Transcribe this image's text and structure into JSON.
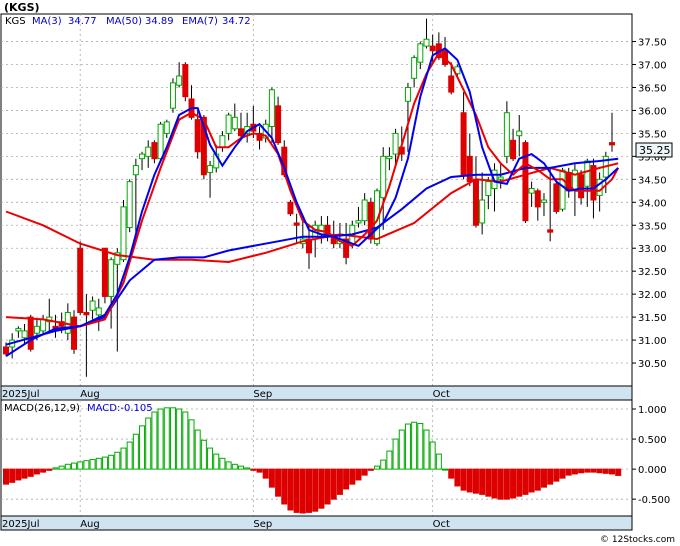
{
  "title": "(KGS)",
  "legend": {
    "symbol": "KGS",
    "ma3_label": "MA(3)",
    "ma3_value": "34.77",
    "ma50_label": "MA(50)",
    "ma50_value": "34.89",
    "ema7_label": "EMA(7)",
    "ema7_value": "34.72"
  },
  "last_price": "35.25",
  "macd_legend": {
    "label": "MACD(26,12,9)",
    "value": "MACD:-0.105"
  },
  "watermark": "© 12Stocks.com",
  "colors": {
    "up": "#00aa00",
    "down": "#dd0000",
    "ma_red": "#ee0000",
    "ma_blue": "#0000ee",
    "axis_band": "#cfe3f0",
    "price_box": "#eef6fa"
  },
  "chart_data": [
    {
      "type": "candlestick",
      "title": "(KGS)",
      "yticks": [
        "37.50",
        "37.00",
        "36.50",
        "36.00",
        "35.50",
        "35.00",
        "34.50",
        "34.00",
        "33.50",
        "33.00",
        "32.50",
        "32.00",
        "31.50",
        "31.00",
        "30.50"
      ],
      "ylim": [
        30.0,
        38.1
      ],
      "x_labels": [
        "2025Jul",
        "Aug",
        "Sep",
        "Oct"
      ],
      "x_label_index": [
        0,
        12,
        40,
        69
      ],
      "grid": true,
      "candles": [
        [
          30.85,
          30.95,
          30.65,
          30.7
        ],
        [
          30.85,
          31.15,
          30.6,
          31.0
        ],
        [
          31.2,
          31.3,
          31.05,
          31.25
        ],
        [
          31.05,
          31.35,
          30.9,
          31.2
        ],
        [
          31.5,
          31.55,
          30.75,
          30.8
        ],
        [
          31.15,
          31.45,
          31.0,
          31.3
        ],
        [
          31.2,
          31.55,
          31.1,
          31.45
        ],
        [
          31.4,
          31.9,
          31.2,
          31.5
        ],
        [
          31.3,
          31.55,
          31.05,
          31.2
        ],
        [
          31.4,
          31.6,
          31.15,
          31.3
        ],
        [
          31.15,
          31.8,
          31.0,
          31.6
        ],
        [
          31.5,
          31.65,
          30.7,
          30.8
        ],
        [
          33.0,
          33.15,
          31.55,
          31.6
        ],
        [
          31.6,
          32.0,
          30.2,
          31.55
        ],
        [
          31.65,
          31.95,
          31.45,
          31.85
        ],
        [
          31.55,
          31.9,
          31.2,
          31.7
        ],
        [
          33.0,
          33.0,
          31.8,
          31.95
        ],
        [
          31.95,
          32.8,
          31.25,
          32.75
        ],
        [
          32.65,
          33.0,
          30.75,
          32.9
        ],
        [
          32.75,
          34.05,
          32.7,
          33.9
        ],
        [
          33.45,
          34.5,
          33.35,
          34.45
        ],
        [
          34.6,
          34.95,
          33.2,
          34.8
        ],
        [
          34.95,
          35.1,
          34.7,
          35.05
        ],
        [
          35.0,
          35.35,
          34.75,
          35.2
        ],
        [
          35.3,
          35.35,
          34.85,
          34.95
        ],
        [
          34.95,
          35.75,
          34.9,
          35.7
        ],
        [
          35.5,
          35.8,
          35.4,
          35.75
        ],
        [
          36.05,
          36.7,
          35.95,
          36.6
        ],
        [
          36.55,
          37.05,
          36.5,
          36.75
        ],
        [
          37.0,
          37.05,
          36.2,
          36.3
        ],
        [
          36.25,
          36.55,
          35.8,
          35.85
        ],
        [
          35.8,
          36.0,
          34.95,
          35.1
        ],
        [
          35.85,
          35.9,
          34.5,
          34.6
        ],
        [
          34.65,
          34.9,
          34.1,
          34.8
        ],
        [
          34.75,
          35.25,
          34.65,
          35.05
        ],
        [
          35.2,
          35.55,
          35.1,
          35.45
        ],
        [
          35.5,
          35.95,
          35.35,
          35.9
        ],
        [
          35.6,
          36.15,
          35.55,
          35.85
        ],
        [
          35.6,
          35.95,
          35.35,
          35.45
        ],
        [
          35.5,
          35.95,
          35.3,
          35.65
        ],
        [
          35.7,
          36.1,
          35.4,
          35.55
        ],
        [
          35.5,
          35.65,
          35.15,
          35.35
        ],
        [
          35.4,
          35.8,
          35.3,
          35.7
        ],
        [
          35.65,
          36.5,
          35.3,
          36.45
        ],
        [
          36.1,
          36.3,
          35.25,
          35.3
        ],
        [
          35.2,
          35.35,
          34.55,
          34.6
        ],
        [
          34.0,
          34.05,
          33.7,
          33.75
        ],
        [
          33.55,
          33.75,
          33.1,
          33.5
        ],
        [
          33.1,
          33.7,
          33.0,
          33.2
        ],
        [
          33.2,
          33.5,
          32.55,
          32.9
        ],
        [
          33.2,
          33.6,
          32.8,
          33.5
        ],
        [
          33.3,
          33.7,
          33.1,
          33.5
        ],
        [
          33.5,
          33.7,
          33.15,
          33.25
        ],
        [
          33.3,
          33.6,
          33.0,
          33.1
        ],
        [
          33.1,
          33.55,
          33.0,
          33.2
        ],
        [
          33.2,
          33.55,
          32.65,
          32.8
        ],
        [
          33.1,
          33.6,
          33.0,
          33.5
        ],
        [
          33.55,
          33.9,
          33.45,
          33.6
        ],
        [
          33.6,
          34.2,
          33.5,
          34.05
        ],
        [
          34.0,
          34.1,
          33.1,
          33.2
        ],
        [
          33.1,
          34.3,
          33.05,
          34.25
        ],
        [
          34.1,
          35.2,
          33.4,
          35.0
        ],
        [
          34.95,
          35.2,
          34.7,
          35.0
        ],
        [
          35.05,
          35.6,
          34.8,
          35.5
        ],
        [
          35.2,
          35.65,
          34.9,
          35.05
        ],
        [
          36.2,
          36.6,
          35.1,
          36.5
        ],
        [
          36.7,
          37.2,
          36.5,
          37.15
        ],
        [
          37.05,
          37.5,
          36.9,
          37.45
        ],
        [
          37.4,
          38.0,
          37.35,
          37.55
        ],
        [
          37.4,
          37.65,
          37.0,
          37.3
        ],
        [
          37.45,
          37.7,
          37.1,
          37.15
        ],
        [
          37.3,
          37.6,
          36.95,
          37.0
        ],
        [
          36.75,
          37.05,
          36.35,
          36.4
        ],
        [
          36.8,
          37.0,
          36.75,
          36.95
        ],
        [
          35.95,
          36.4,
          34.5,
          34.6
        ],
        [
          35.0,
          35.5,
          34.35,
          34.45
        ],
        [
          34.5,
          35.0,
          33.45,
          33.5
        ],
        [
          33.55,
          34.65,
          33.3,
          34.05
        ],
        [
          34.15,
          34.55,
          33.85,
          34.45
        ],
        [
          34.3,
          34.85,
          33.8,
          34.7
        ],
        [
          34.5,
          34.85,
          34.3,
          34.55
        ],
        [
          35.0,
          36.2,
          34.85,
          35.95
        ],
        [
          35.35,
          35.6,
          34.9,
          34.95
        ],
        [
          35.45,
          35.9,
          35.0,
          35.55
        ],
        [
          35.3,
          35.35,
          33.55,
          33.6
        ],
        [
          34.2,
          34.45,
          33.9,
          34.3
        ],
        [
          34.25,
          34.3,
          33.6,
          33.9
        ],
        [
          34.0,
          34.2,
          33.7,
          34.05
        ],
        [
          33.4,
          34.75,
          33.15,
          33.35
        ],
        [
          34.4,
          34.45,
          33.75,
          33.8
        ],
        [
          33.85,
          34.75,
          33.8,
          34.7
        ],
        [
          34.65,
          34.75,
          34.1,
          34.25
        ],
        [
          34.25,
          34.85,
          33.7,
          34.7
        ],
        [
          34.6,
          34.7,
          33.95,
          34.1
        ],
        [
          34.35,
          34.95,
          33.9,
          34.9
        ],
        [
          34.8,
          34.95,
          33.65,
          34.05
        ],
        [
          34.15,
          34.65,
          33.8,
          34.5
        ],
        [
          34.55,
          35.1,
          34.2,
          35.0
        ],
        [
          35.3,
          35.95,
          35.1,
          35.25
        ]
      ],
      "ma_red": [
        [
          0,
          31.5
        ],
        [
          6,
          31.45
        ],
        [
          12,
          31.3
        ],
        [
          16,
          31.45
        ],
        [
          19,
          32.25
        ],
        [
          22,
          33.6
        ],
        [
          25,
          34.75
        ],
        [
          28,
          35.8
        ],
        [
          30,
          35.95
        ],
        [
          32,
          35.8
        ],
        [
          34,
          35.2
        ],
        [
          36,
          35.2
        ],
        [
          38,
          35.4
        ],
        [
          40,
          35.5
        ],
        [
          42,
          35.45
        ],
        [
          44,
          35.05
        ],
        [
          46,
          34.25
        ],
        [
          48,
          33.6
        ],
        [
          50,
          33.4
        ],
        [
          52,
          33.35
        ],
        [
          54,
          33.15
        ],
        [
          56,
          33.05
        ],
        [
          58,
          33.3
        ],
        [
          60,
          33.6
        ],
        [
          62,
          34.35
        ],
        [
          64,
          35.25
        ],
        [
          66,
          36.15
        ],
        [
          68,
          36.8
        ],
        [
          70,
          37.25
        ],
        [
          72,
          37.0
        ],
        [
          74,
          36.45
        ],
        [
          76,
          35.9
        ],
        [
          78,
          35.2
        ],
        [
          80,
          34.85
        ],
        [
          82,
          34.6
        ],
        [
          84,
          34.85
        ],
        [
          86,
          34.7
        ],
        [
          88,
          34.5
        ],
        [
          90,
          34.5
        ],
        [
          92,
          34.25
        ],
        [
          94,
          34.25
        ],
        [
          96,
          34.25
        ],
        [
          98,
          34.5
        ],
        [
          99,
          34.75
        ]
      ],
      "ma_red2": [
        [
          0,
          33.8
        ],
        [
          6,
          33.5
        ],
        [
          12,
          33.1
        ],
        [
          18,
          32.85
        ],
        [
          24,
          32.75
        ],
        [
          30,
          32.75
        ],
        [
          36,
          32.7
        ],
        [
          42,
          32.9
        ],
        [
          48,
          33.15
        ],
        [
          54,
          33.3
        ],
        [
          60,
          33.2
        ],
        [
          66,
          33.55
        ],
        [
          72,
          34.2
        ],
        [
          76,
          34.5
        ],
        [
          80,
          34.45
        ],
        [
          84,
          34.6
        ],
        [
          88,
          34.75
        ],
        [
          92,
          34.6
        ],
        [
          96,
          34.75
        ],
        [
          99,
          34.85
        ]
      ],
      "ma_blue": [
        [
          0,
          30.65
        ],
        [
          4,
          31.0
        ],
        [
          8,
          31.25
        ],
        [
          12,
          31.3
        ],
        [
          16,
          31.55
        ],
        [
          18,
          32.0
        ],
        [
          20,
          32.8
        ],
        [
          22,
          33.8
        ],
        [
          24,
          34.6
        ],
        [
          26,
          35.2
        ],
        [
          28,
          35.9
        ],
        [
          30,
          36.05
        ],
        [
          31,
          36.05
        ],
        [
          33,
          35.25
        ],
        [
          35,
          34.8
        ],
        [
          37,
          35.2
        ],
        [
          39,
          35.55
        ],
        [
          41,
          35.7
        ],
        [
          43,
          35.4
        ],
        [
          45,
          34.75
        ],
        [
          47,
          34.0
        ],
        [
          49,
          33.4
        ],
        [
          51,
          33.3
        ],
        [
          53,
          33.25
        ],
        [
          55,
          33.15
        ],
        [
          57,
          33.05
        ],
        [
          59,
          33.3
        ],
        [
          61,
          33.55
        ],
        [
          63,
          34.1
        ],
        [
          65,
          34.95
        ],
        [
          67,
          36.3
        ],
        [
          69,
          37.2
        ],
        [
          71,
          37.35
        ],
        [
          73,
          37.1
        ],
        [
          75,
          36.4
        ],
        [
          77,
          35.2
        ],
        [
          79,
          34.45
        ],
        [
          81,
          34.4
        ],
        [
          83,
          34.95
        ],
        [
          85,
          35.05
        ],
        [
          87,
          34.85
        ],
        [
          89,
          34.45
        ],
        [
          91,
          34.25
        ],
        [
          93,
          34.3
        ],
        [
          95,
          34.3
        ],
        [
          97,
          34.5
        ],
        [
          99,
          34.75
        ]
      ],
      "ma_blue50": [
        [
          0,
          30.9
        ],
        [
          4,
          31.05
        ],
        [
          8,
          31.2
        ],
        [
          12,
          31.3
        ],
        [
          16,
          31.5
        ],
        [
          20,
          32.3
        ],
        [
          24,
          32.75
        ],
        [
          28,
          32.8
        ],
        [
          32,
          32.8
        ],
        [
          36,
          32.95
        ],
        [
          40,
          33.05
        ],
        [
          44,
          33.15
        ],
        [
          48,
          33.25
        ],
        [
          52,
          33.25
        ],
        [
          56,
          33.3
        ],
        [
          60,
          33.45
        ],
        [
          64,
          33.85
        ],
        [
          68,
          34.3
        ],
        [
          72,
          34.55
        ],
        [
          76,
          34.6
        ],
        [
          80,
          34.6
        ],
        [
          84,
          34.75
        ],
        [
          88,
          34.75
        ],
        [
          92,
          34.85
        ],
        [
          96,
          34.9
        ],
        [
          99,
          34.95
        ]
      ]
    },
    {
      "type": "bar",
      "title": "MACD(26,12,9)",
      "yticks": [
        "1.000",
        "0.500",
        "0.000",
        "-0.500"
      ],
      "ylim": [
        -0.78,
        1.15
      ],
      "x_labels": [
        "2025Jul",
        "Aug",
        "Sep",
        "Oct"
      ],
      "x_label_index": [
        0,
        12,
        40,
        69
      ],
      "values": [
        -0.25,
        -0.22,
        -0.18,
        -0.15,
        -0.12,
        -0.08,
        -0.05,
        -0.02,
        0.02,
        0.05,
        0.08,
        0.1,
        0.12,
        0.14,
        0.16,
        0.18,
        0.2,
        0.23,
        0.28,
        0.35,
        0.45,
        0.58,
        0.72,
        0.85,
        0.95,
        1.0,
        1.02,
        1.02,
        1.0,
        0.95,
        0.82,
        0.65,
        0.48,
        0.35,
        0.25,
        0.18,
        0.12,
        0.08,
        0.05,
        0.02,
        -0.02,
        -0.05,
        -0.15,
        -0.3,
        -0.45,
        -0.58,
        -0.68,
        -0.72,
        -0.73,
        -0.72,
        -0.7,
        -0.65,
        -0.58,
        -0.5,
        -0.42,
        -0.33,
        -0.25,
        -0.18,
        -0.1,
        -0.02,
        0.05,
        0.15,
        0.3,
        0.5,
        0.65,
        0.75,
        0.78,
        0.76,
        0.65,
        0.45,
        0.25,
        0.0,
        -0.15,
        -0.28,
        -0.35,
        -0.38,
        -0.4,
        -0.42,
        -0.45,
        -0.48,
        -0.5,
        -0.5,
        -0.48,
        -0.45,
        -0.42,
        -0.38,
        -0.35,
        -0.3,
        -0.25,
        -0.2,
        -0.15,
        -0.1,
        -0.08,
        -0.06,
        -0.05,
        -0.05,
        -0.06,
        -0.07,
        -0.08,
        -0.105
      ]
    }
  ]
}
